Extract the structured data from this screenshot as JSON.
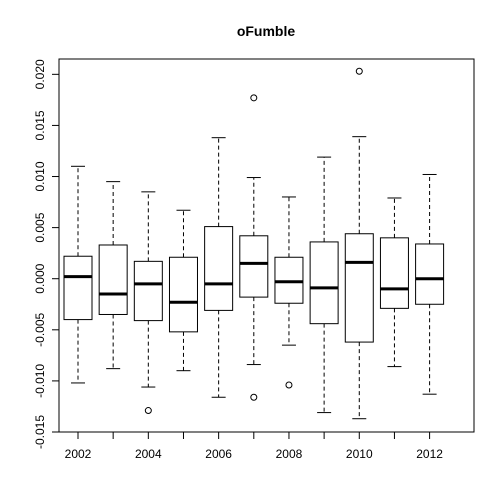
{
  "chart_data": {
    "type": "boxplot",
    "title": "oFumble",
    "xlabel": "",
    "ylabel": "",
    "ylim": [
      -0.015,
      0.0215
    ],
    "y_ticks": [
      -0.015,
      -0.01,
      -0.005,
      0.0,
      0.005,
      0.01,
      0.015,
      0.02
    ],
    "y_tick_labels": [
      "-0.015",
      "-0.010",
      "-0.005",
      "0.000",
      "0.005",
      "0.010",
      "0.015",
      "0.020"
    ],
    "x_tick_labels": [
      "2002",
      "2004",
      "2006",
      "2008",
      "2010",
      "2012"
    ],
    "categories": [
      "2002",
      "2003",
      "2004",
      "2005",
      "2006",
      "2007",
      "2008",
      "2009",
      "2010",
      "2011",
      "2012"
    ],
    "boxes": [
      {
        "category": "2002",
        "whisker_low": -0.0102,
        "q1": -0.004,
        "median": 0.0002,
        "q3": 0.0022,
        "whisker_high": 0.011,
        "outliers": []
      },
      {
        "category": "2003",
        "whisker_low": -0.0088,
        "q1": -0.0035,
        "median": -0.0015,
        "q3": 0.0033,
        "whisker_high": 0.0095,
        "outliers": []
      },
      {
        "category": "2004",
        "whisker_low": -0.0106,
        "q1": -0.0041,
        "median": -0.0005,
        "q3": 0.0017,
        "whisker_high": 0.0085,
        "outliers": [
          -0.0129
        ]
      },
      {
        "category": "2005",
        "whisker_low": -0.009,
        "q1": -0.0052,
        "median": -0.0023,
        "q3": 0.0021,
        "whisker_high": 0.0067,
        "outliers": []
      },
      {
        "category": "2006",
        "whisker_low": -0.0116,
        "q1": -0.0031,
        "median": -0.0005,
        "q3": 0.0051,
        "whisker_high": 0.0138,
        "outliers": []
      },
      {
        "category": "2007",
        "whisker_low": -0.0084,
        "q1": -0.0018,
        "median": 0.0015,
        "q3": 0.0042,
        "whisker_high": 0.0099,
        "outliers": [
          0.0177,
          -0.0116
        ]
      },
      {
        "category": "2008",
        "whisker_low": -0.0065,
        "q1": -0.0024,
        "median": -0.0003,
        "q3": 0.0021,
        "whisker_high": 0.008,
        "outliers": [
          -0.0104
        ]
      },
      {
        "category": "2009",
        "whisker_low": -0.0131,
        "q1": -0.0044,
        "median": -0.0009,
        "q3": 0.0036,
        "whisker_high": 0.0119,
        "outliers": []
      },
      {
        "category": "2010",
        "whisker_low": -0.0137,
        "q1": -0.0062,
        "median": 0.0016,
        "q3": 0.0044,
        "whisker_high": 0.0139,
        "outliers": [
          0.0203
        ]
      },
      {
        "category": "2011",
        "whisker_low": -0.0086,
        "q1": -0.0029,
        "median": -0.001,
        "q3": 0.004,
        "whisker_high": 0.0079,
        "outliers": []
      },
      {
        "category": "2012",
        "whisker_low": -0.0113,
        "q1": -0.0025,
        "median": 0.0,
        "q3": 0.0034,
        "whisker_high": 0.0102,
        "outliers": []
      }
    ]
  }
}
